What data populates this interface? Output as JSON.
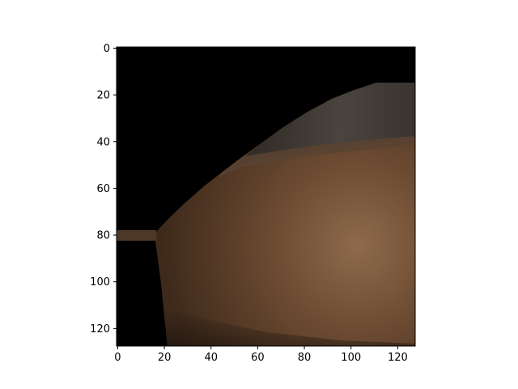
{
  "chart_data": {
    "type": "heatmap",
    "title": "",
    "xlabel": "",
    "ylabel": "",
    "xlim": [
      -0.5,
      127.5
    ],
    "ylim": [
      127.5,
      -0.5
    ],
    "x_ticks": [
      0,
      20,
      40,
      60,
      80,
      100,
      120
    ],
    "y_ticks": [
      0,
      20,
      40,
      60,
      80,
      100,
      120
    ],
    "x_tick_labels": [
      "0",
      "20",
      "40",
      "60",
      "80",
      "100",
      "120"
    ],
    "y_tick_labels": [
      "0",
      "20",
      "40",
      "60",
      "80",
      "100",
      "120"
    ],
    "image_shape": [
      128,
      128
    ],
    "grid": false,
    "content": "image patch: black background with brown skin-toned region lower-right, darker band along upper diagonal edge",
    "colors": {
      "background_region": "#000000",
      "skin_dark": "#3e2a1b",
      "skin_mid": "#6b4a31",
      "skin_light": "#8f6a4c",
      "band_gray": "#4a443f"
    }
  }
}
